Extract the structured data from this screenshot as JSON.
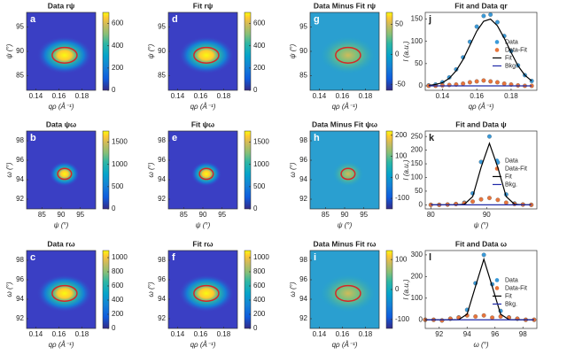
{
  "chart_data": [
    {
      "type": "heatmap",
      "panel_label": "a",
      "title": "Data rψ",
      "xlabel": "qρ (Å⁻¹)",
      "ylabel": "ψ (°)",
      "xlim": [
        0.132,
        0.192
      ],
      "xticks": [
        0.14,
        0.16,
        0.18
      ],
      "ylim": [
        82,
        98
      ],
      "yticks": [
        85,
        90,
        95
      ],
      "clim": [
        0,
        700
      ],
      "cticks": [
        0,
        200,
        400,
        600
      ]
    },
    {
      "type": "heatmap",
      "panel_label": "b",
      "title": "Data ψω",
      "xlabel": "ψ (°)",
      "ylabel": "ω (°)",
      "xlim": [
        81,
        99
      ],
      "xticks": [
        85,
        90,
        95
      ],
      "ylim": [
        91,
        99
      ],
      "yticks": [
        92,
        94,
        96,
        98
      ],
      "clim": [
        0,
        1750
      ],
      "cticks": [
        0,
        500,
        1000,
        1500
      ]
    },
    {
      "type": "heatmap",
      "panel_label": "c",
      "title": "Data rω",
      "xlabel": "qρ (Å⁻¹)",
      "ylabel": "ω (°)",
      "xlim": [
        0.132,
        0.192
      ],
      "xticks": [
        0.14,
        0.16,
        0.18
      ],
      "ylim": [
        91,
        99
      ],
      "yticks": [
        92,
        94,
        96,
        98
      ],
      "clim": [
        0,
        1100
      ],
      "cticks": [
        0,
        200,
        400,
        600,
        800,
        1000
      ]
    },
    {
      "type": "heatmap",
      "panel_label": "d",
      "title": "Fit rψ",
      "xlabel": "qρ (Å⁻¹)",
      "ylabel": "ψ (°)",
      "xlim": [
        0.132,
        0.192
      ],
      "xticks": [
        0.14,
        0.16,
        0.18
      ],
      "ylim": [
        82,
        98
      ],
      "yticks": [
        85,
        90,
        95
      ],
      "clim": [
        0,
        700
      ],
      "cticks": [
        0,
        200,
        400,
        600
      ]
    },
    {
      "type": "heatmap",
      "panel_label": "e",
      "title": "Fit ψω",
      "xlabel": "ψ (°)",
      "ylabel": "ω (°)",
      "xlim": [
        81,
        99
      ],
      "xticks": [
        85,
        90,
        95
      ],
      "ylim": [
        91,
        99
      ],
      "yticks": [
        92,
        94,
        96,
        98
      ],
      "clim": [
        0,
        1750
      ],
      "cticks": [
        0,
        500,
        1000,
        1500
      ]
    },
    {
      "type": "heatmap",
      "panel_label": "f",
      "title": "Fit rω",
      "xlabel": "qρ (Å⁻¹)",
      "ylabel": "ω (°)",
      "xlim": [
        0.132,
        0.192
      ],
      "xticks": [
        0.14,
        0.16,
        0.18
      ],
      "ylim": [
        91,
        99
      ],
      "yticks": [
        92,
        94,
        96,
        98
      ],
      "clim": [
        0,
        1100
      ],
      "cticks": [
        0,
        200,
        400,
        600,
        800,
        1000
      ]
    },
    {
      "type": "heatmap",
      "panel_label": "g",
      "title": "Data Minus Fit rψ",
      "xlabel": "qρ (Å⁻¹)",
      "ylabel": "ψ (°)",
      "xlim": [
        0.132,
        0.192
      ],
      "xticks": [
        0.14,
        0.16,
        0.18
      ],
      "ylim": [
        82,
        98
      ],
      "yticks": [
        85,
        90,
        95
      ],
      "clim": [
        -60,
        70
      ],
      "cticks": [
        -50,
        0,
        50
      ]
    },
    {
      "type": "heatmap",
      "panel_label": "h",
      "title": "Data Minus Fit ψω",
      "xlabel": "ψ (°)",
      "ylabel": "ω (°)",
      "xlim": [
        81,
        99
      ],
      "xticks": [
        85,
        90,
        95
      ],
      "ylim": [
        91,
        99
      ],
      "yticks": [
        92,
        94,
        96,
        98
      ],
      "clim": [
        -150,
        220
      ],
      "cticks": [
        -100,
        0,
        100,
        200
      ]
    },
    {
      "type": "heatmap",
      "panel_label": "i",
      "title": "Data Minus Fit rω",
      "xlabel": "qρ (Å⁻¹)",
      "ylabel": "ω (°)",
      "xlim": [
        0.132,
        0.192
      ],
      "xticks": [
        0.14,
        0.16,
        0.18
      ],
      "ylim": [
        91,
        99
      ],
      "yticks": [
        92,
        94,
        96,
        98
      ],
      "clim": [
        -130,
        130
      ],
      "cticks": [
        -100,
        0,
        100
      ]
    },
    {
      "type": "line",
      "panel_label": "j",
      "title": "Fit and Data qr",
      "xlabel": "qρ (Å⁻¹)",
      "ylabel": "I (a.u.)",
      "xlim": [
        0.13,
        0.195
      ],
      "xticks": [
        0.14,
        0.16,
        0.18
      ],
      "ylim": [
        -10,
        165
      ],
      "yticks": [
        0,
        50,
        100,
        150
      ],
      "x": [
        0.132,
        0.136,
        0.14,
        0.144,
        0.148,
        0.152,
        0.156,
        0.16,
        0.164,
        0.168,
        0.172,
        0.176,
        0.18,
        0.184,
        0.188,
        0.192
      ],
      "series": [
        {
          "name": "Data",
          "color": "#3a9ad9",
          "style": "markers",
          "values": [
            1,
            3,
            8,
            19,
            37,
            64,
            99,
            133,
            157,
            160,
            143,
            112,
            78,
            46,
            24,
            11
          ]
        },
        {
          "name": "Data-Fit",
          "color": "#e8743b",
          "style": "markers",
          "values": [
            0,
            0,
            1,
            2,
            3,
            5,
            8,
            10,
            12,
            10,
            8,
            5,
            3,
            1,
            0,
            0
          ]
        },
        {
          "name": "Fit",
          "color": "#000000",
          "style": "line",
          "values": [
            1,
            3,
            7,
            17,
            34,
            59,
            91,
            123,
            145,
            150,
            135,
            107,
            75,
            45,
            24,
            11
          ]
        },
        {
          "name": "Bkg.",
          "color": "#1f2aa8",
          "style": "line",
          "values": [
            0,
            0,
            0,
            0,
            0,
            0,
            0,
            0,
            0,
            0,
            0,
            0,
            0,
            0,
            0,
            0
          ]
        }
      ]
    },
    {
      "type": "line",
      "panel_label": "k",
      "title": "Fit and Data ψ",
      "xlabel": "ψ (°)",
      "ylabel": "I (a.u.)",
      "xlim": [
        79,
        99
      ],
      "xticks": [
        80,
        90
      ],
      "ylim": [
        -15,
        270
      ],
      "yticks": [
        0,
        50,
        100,
        150,
        200,
        250
      ],
      "x": [
        80,
        81.5,
        83,
        84.5,
        86,
        87.5,
        89,
        90.5,
        92,
        93.5,
        95,
        96.5,
        98
      ],
      "series": [
        {
          "name": "Data",
          "color": "#3a9ad9",
          "style": "markers",
          "values": [
            0,
            0,
            1,
            3,
            8,
            42,
            157,
            250,
            155,
            38,
            5,
            1,
            0
          ]
        },
        {
          "name": "Data-Fit",
          "color": "#e8743b",
          "style": "markers",
          "values": [
            0,
            0,
            1,
            3,
            6,
            12,
            20,
            25,
            18,
            8,
            3,
            1,
            0
          ]
        },
        {
          "name": "Fit",
          "color": "#000000",
          "style": "line",
          "values": [
            0,
            0,
            0,
            0,
            2,
            30,
            137,
            225,
            137,
            30,
            2,
            0,
            0
          ]
        },
        {
          "name": "Bkg.",
          "color": "#1f2aa8",
          "style": "line",
          "values": [
            0,
            0,
            0,
            0,
            0,
            0,
            0,
            0,
            0,
            0,
            0,
            0,
            0
          ]
        }
      ]
    },
    {
      "type": "line",
      "panel_label": "l",
      "title": "Fit and Data ω",
      "xlabel": "ω (°)",
      "ylabel": "I (a.u.)",
      "xlim": [
        91,
        99
      ],
      "xticks": [
        92,
        94,
        96,
        98
      ],
      "ylim": [
        -40,
        320
      ],
      "yticks": [
        0,
        100,
        200,
        300
      ],
      "x": [
        91,
        91.6,
        92.2,
        92.8,
        93.4,
        94,
        94.6,
        95.2,
        95.8,
        96.4,
        97,
        97.6,
        98.2,
        98.8
      ],
      "series": [
        {
          "name": "Data",
          "color": "#3a9ad9",
          "style": "markers",
          "values": [
            0,
            0,
            -3,
            5,
            11,
            46,
            169,
            300,
            164,
            41,
            11,
            5,
            0,
            0
          ]
        },
        {
          "name": "Data-Fit",
          "color": "#e8743b",
          "style": "markers",
          "values": [
            0,
            0,
            -3,
            5,
            10,
            20,
            15,
            20,
            10,
            15,
            10,
            5,
            0,
            0
          ]
        },
        {
          "name": "Fit",
          "color": "#000000",
          "style": "line",
          "values": [
            0,
            0,
            0,
            0,
            1,
            26,
            154,
            280,
            154,
            26,
            1,
            0,
            0,
            0
          ]
        },
        {
          "name": "Bkg.",
          "color": "#1f2aa8",
          "style": "line",
          "values": [
            0,
            0,
            0,
            0,
            0,
            0,
            0,
            0,
            0,
            0,
            0,
            0,
            0,
            0
          ]
        }
      ]
    }
  ]
}
